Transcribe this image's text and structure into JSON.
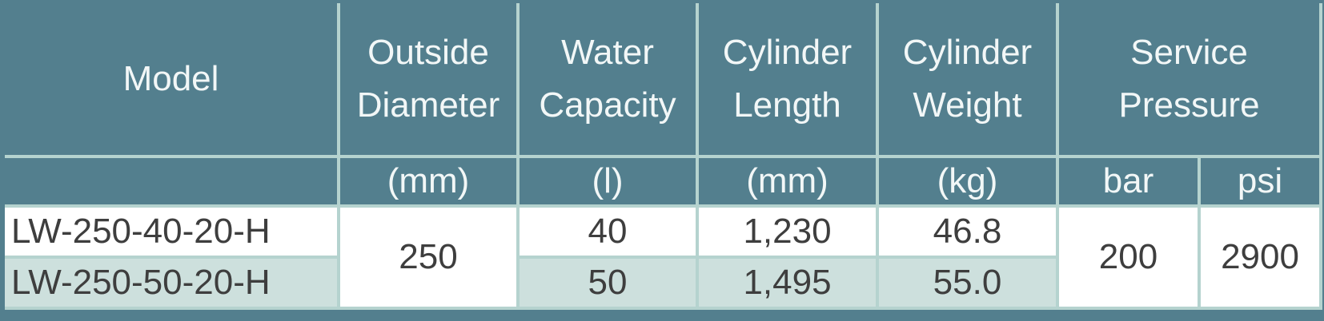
{
  "table": {
    "header": [
      "Model",
      "Outside Diameter",
      "Water Capacity",
      "Cylinder Length",
      "Cylinder Weight",
      "Service Pressure"
    ],
    "units": [
      "(mm)",
      "(l)",
      "(mm)",
      "(kg)",
      "bar",
      "psi"
    ],
    "rows": [
      [
        "LW-250-40-20-H",
        "250",
        "40",
        "1,230",
        "46.8",
        "200",
        "2900"
      ],
      [
        "LW-250-50-20-H",
        "50",
        "1,495",
        "55.0"
      ]
    ]
  }
}
